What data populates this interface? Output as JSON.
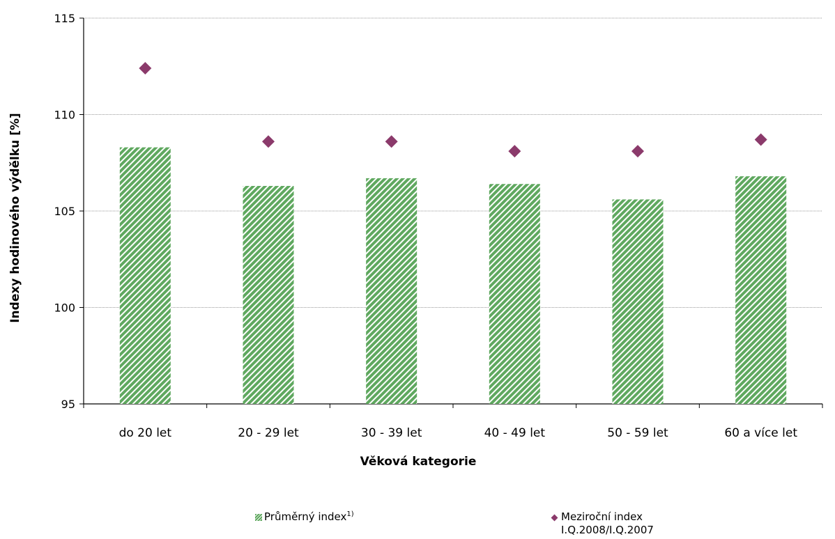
{
  "chart_data": {
    "type": "bar",
    "categories": [
      "do 20 let",
      "20 - 29 let",
      "30 - 39 let",
      "40 - 49 let",
      "50 - 59 let",
      "60 a více let"
    ],
    "series": [
      {
        "name": "Průměrný index",
        "kind": "bar",
        "pattern": "green-hatched",
        "color": "#5fa85f",
        "values": [
          108.3,
          106.3,
          106.7,
          106.4,
          105.6,
          106.8
        ]
      },
      {
        "name": "Meziroční index I.Q.2008/I.Q.2007",
        "kind": "marker",
        "marker": "diamond",
        "color": "#8b3a6b",
        "values": [
          112.4,
          108.6,
          108.6,
          108.1,
          108.1,
          108.7
        ]
      }
    ],
    "xlabel": "Věková kategorie",
    "ylabel": "Indexy hodinového výdělku [%]",
    "ylim": [
      95,
      115
    ],
    "yticks": [
      95,
      100,
      105,
      110,
      115
    ],
    "grid": true,
    "legend_position": "bottom"
  },
  "legend": {
    "bar_label": "Průměrný index",
    "bar_sup": "1)",
    "marker_label_line1": "Meziroční index",
    "marker_label_line2": "I.Q.2008/I.Q.2007"
  }
}
